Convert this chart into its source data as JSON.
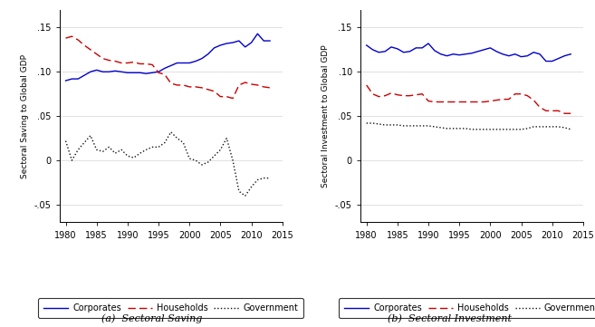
{
  "years": [
    1980,
    1981,
    1982,
    1983,
    1984,
    1985,
    1986,
    1987,
    1988,
    1989,
    1990,
    1991,
    1992,
    1993,
    1994,
    1995,
    1996,
    1997,
    1998,
    1999,
    2000,
    2001,
    2002,
    2003,
    2004,
    2005,
    2006,
    2007,
    2008,
    2009,
    2010,
    2011,
    2012,
    2013
  ],
  "saving_corporates": [
    0.09,
    0.092,
    0.092,
    0.096,
    0.1,
    0.102,
    0.1,
    0.1,
    0.101,
    0.1,
    0.099,
    0.099,
    0.099,
    0.098,
    0.099,
    0.1,
    0.104,
    0.107,
    0.11,
    0.11,
    0.11,
    0.112,
    0.115,
    0.12,
    0.127,
    0.13,
    0.132,
    0.133,
    0.135,
    0.128,
    0.133,
    0.143,
    0.135,
    0.135
  ],
  "saving_households": [
    0.138,
    0.14,
    0.136,
    0.13,
    0.125,
    0.12,
    0.115,
    0.113,
    0.112,
    0.11,
    0.11,
    0.111,
    0.109,
    0.109,
    0.108,
    0.099,
    0.097,
    0.087,
    0.085,
    0.085,
    0.083,
    0.083,
    0.082,
    0.08,
    0.078,
    0.072,
    0.072,
    0.07,
    0.085,
    0.088,
    0.086,
    0.085,
    0.083,
    0.082
  ],
  "saving_government": [
    0.022,
    0.0,
    0.012,
    0.02,
    0.028,
    0.012,
    0.01,
    0.015,
    0.008,
    0.012,
    0.005,
    0.003,
    0.008,
    0.012,
    0.015,
    0.015,
    0.02,
    0.032,
    0.025,
    0.02,
    0.002,
    0.0,
    -0.005,
    -0.002,
    0.005,
    0.012,
    0.025,
    0.0,
    -0.035,
    -0.04,
    -0.03,
    -0.022,
    -0.02,
    -0.02
  ],
  "invest_corporates": [
    0.13,
    0.125,
    0.122,
    0.123,
    0.128,
    0.126,
    0.122,
    0.123,
    0.127,
    0.127,
    0.132,
    0.124,
    0.12,
    0.118,
    0.12,
    0.119,
    0.12,
    0.121,
    0.123,
    0.125,
    0.127,
    0.123,
    0.12,
    0.118,
    0.12,
    0.117,
    0.118,
    0.122,
    0.12,
    0.112,
    0.112,
    0.115,
    0.118,
    0.12
  ],
  "invest_households": [
    0.085,
    0.075,
    0.072,
    0.073,
    0.076,
    0.074,
    0.073,
    0.073,
    0.074,
    0.075,
    0.067,
    0.066,
    0.066,
    0.066,
    0.066,
    0.066,
    0.066,
    0.066,
    0.066,
    0.066,
    0.067,
    0.068,
    0.069,
    0.069,
    0.075,
    0.075,
    0.073,
    0.068,
    0.06,
    0.056,
    0.056,
    0.056,
    0.053,
    0.053
  ],
  "invest_government": [
    0.042,
    0.042,
    0.041,
    0.04,
    0.04,
    0.04,
    0.039,
    0.039,
    0.039,
    0.039,
    0.039,
    0.038,
    0.037,
    0.036,
    0.036,
    0.036,
    0.036,
    0.035,
    0.035,
    0.035,
    0.035,
    0.035,
    0.035,
    0.035,
    0.035,
    0.035,
    0.036,
    0.038,
    0.038,
    0.038,
    0.038,
    0.038,
    0.037,
    0.035
  ],
  "color_corporates": "#0000cc",
  "color_households": "#cc0000",
  "color_government": "#111111",
  "ylabel_left": "Sectoral Saving to Global GDP",
  "ylabel_right": "Sectoral Investment to Global GDP",
  "title_left": "(a)  Sectoral Saving",
  "title_right": "(b)  Sectoral Investment",
  "ylim": [
    -0.07,
    0.17
  ],
  "yticks": [
    -0.05,
    0.0,
    0.05,
    0.1,
    0.15
  ],
  "xlim": [
    1979,
    2015
  ],
  "xticks": [
    1980,
    1985,
    1990,
    1995,
    2000,
    2005,
    2010,
    2015
  ]
}
